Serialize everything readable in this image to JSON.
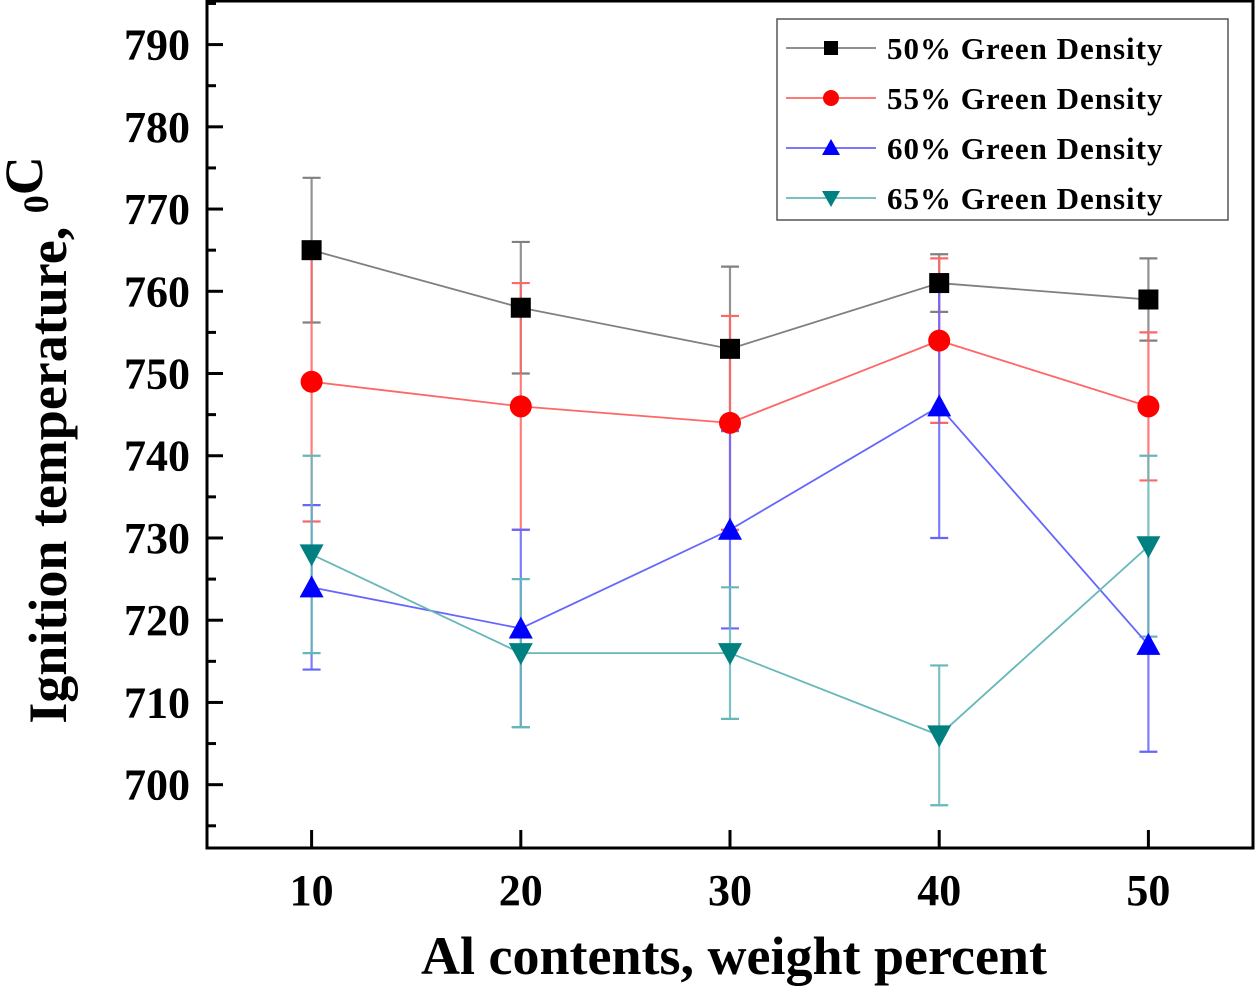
{
  "chart_data": {
    "type": "line",
    "title": "",
    "xlabel": "Al contents, weight percent",
    "ylabel": "Ignition temperature, ",
    "ylabel_unit_sup": "0",
    "ylabel_unit": "C",
    "x": [
      10,
      20,
      30,
      40,
      50
    ],
    "xlim": [
      5,
      55
    ],
    "ylim": [
      692.3,
      795.3
    ],
    "xticks": [
      10,
      20,
      30,
      40,
      50
    ],
    "xtick_labels": [
      "10",
      "20",
      "30",
      "40",
      "50"
    ],
    "yticks": [
      700,
      710,
      720,
      730,
      740,
      750,
      760,
      770,
      780,
      790
    ],
    "ytick_labels": [
      "700",
      "710",
      "720",
      "730",
      "740",
      "750",
      "760",
      "770",
      "780",
      "790"
    ],
    "grid": false,
    "legend_position": "top-right",
    "series": [
      {
        "name": "50% Green Density",
        "marker": "square",
        "color": "#000000",
        "line_color": "#808080",
        "values": [
          765,
          758,
          753,
          761,
          759
        ],
        "errors": [
          8.8,
          8,
          10,
          3.5,
          5
        ]
      },
      {
        "name": "55% Green Density",
        "marker": "circle",
        "color": "#ff0000",
        "line_color": "#ff6666",
        "values": [
          749,
          746,
          744,
          754,
          746
        ],
        "errors": [
          17,
          15,
          13,
          10,
          9
        ]
      },
      {
        "name": "60% Green Density",
        "marker": "triangle-up",
        "color": "#0000ff",
        "line_color": "#6666ff",
        "values": [
          724,
          719,
          731,
          746,
          717
        ],
        "errors": [
          10,
          12,
          12,
          16,
          13
        ]
      },
      {
        "name": "65% Green Density",
        "marker": "triangle-down",
        "color": "#008080",
        "line_color": "#66b8b8",
        "values": [
          728,
          716,
          716,
          706,
          729
        ],
        "errors": [
          12,
          9,
          8,
          8.5,
          11
        ]
      }
    ]
  }
}
